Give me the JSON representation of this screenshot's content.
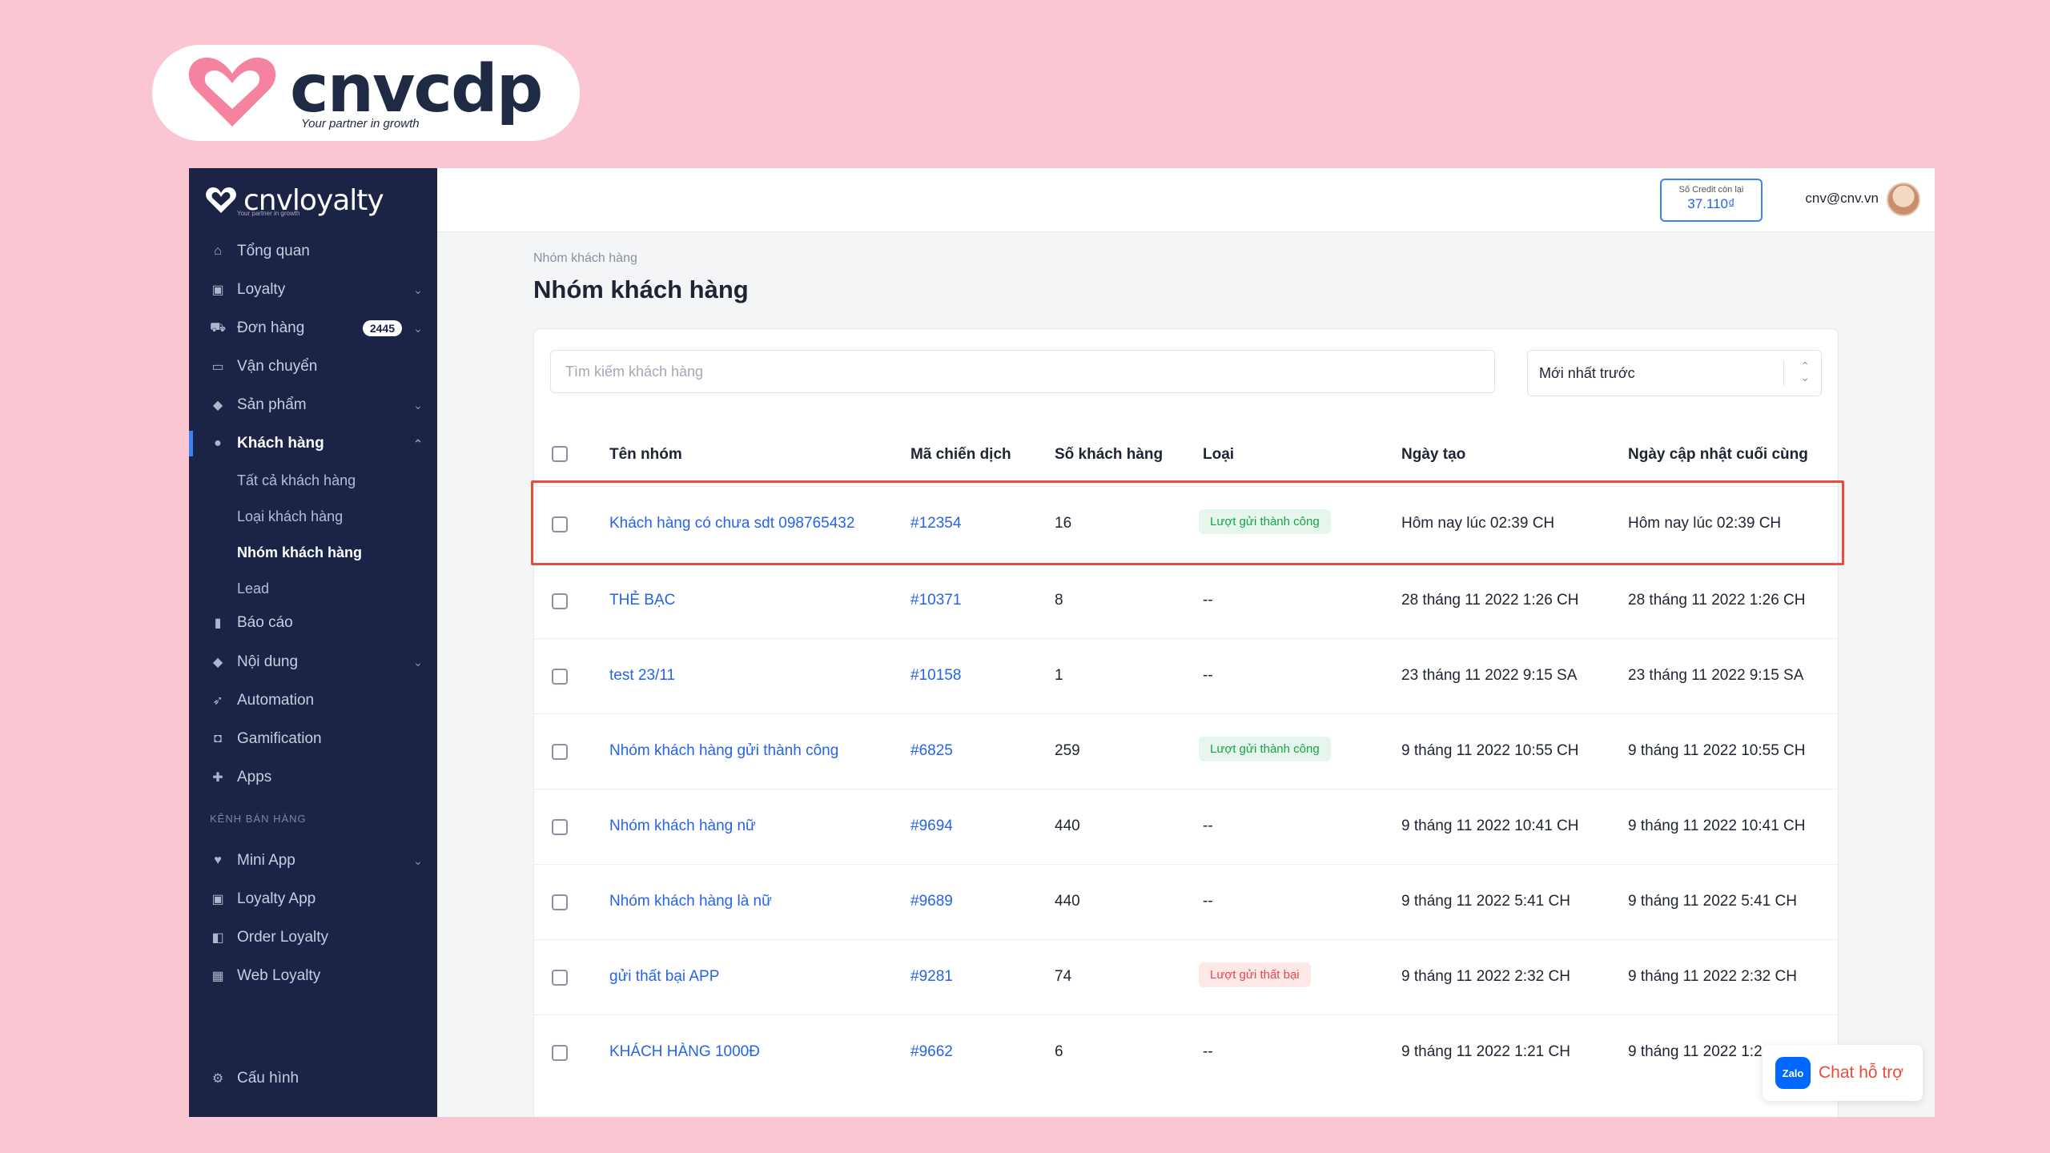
{
  "brand": {
    "name": "cnvcdp",
    "tagline": "Your partner in growth"
  },
  "sidebar": {
    "logo": "cnvloyalty",
    "logo_tag": "Your partner in growth",
    "items": [
      {
        "label": "Tổng quan",
        "icon": "home-icon"
      },
      {
        "label": "Loyalty",
        "icon": "gift-icon"
      },
      {
        "label": "Đơn hàng",
        "icon": "cart-icon",
        "badge": "2445"
      },
      {
        "label": "Vận chuyển",
        "icon": "truck-icon"
      },
      {
        "label": "Sản phẩm",
        "icon": "tag-icon"
      },
      {
        "label": "Khách hàng",
        "icon": "user-icon"
      },
      {
        "label": "Báo cáo",
        "icon": "bar-chart-icon"
      },
      {
        "label": "Nội dung",
        "icon": "content-icon"
      },
      {
        "label": "Automation",
        "icon": "rocket-icon"
      },
      {
        "label": "Gamification",
        "icon": "gamepad-icon"
      },
      {
        "label": "Apps",
        "icon": "puzzle-icon"
      }
    ],
    "subitems": [
      "Tất cả khách hàng",
      "Loại khách hàng",
      "Nhóm khách hàng",
      "Lead"
    ],
    "section_label": "KÊNH BÁN HÀNG",
    "channels": [
      {
        "label": "Mini App",
        "icon": "heart-icon"
      },
      {
        "label": "Loyalty App",
        "icon": "app-icon"
      },
      {
        "label": "Order Loyalty",
        "icon": "bag-icon"
      },
      {
        "label": "Web Loyalty",
        "icon": "web-icon"
      }
    ],
    "settings": "Cấu hình"
  },
  "topbar": {
    "credit_label": "Số Credit còn lại",
    "credit_value": "37.110₫",
    "user_email": "cnv@cnv.vn"
  },
  "main": {
    "breadcrumb": "Nhóm khách hàng",
    "title": "Nhóm khách hàng",
    "search_placeholder": "Tìm kiếm khách hàng",
    "sort_value": "Mới nhất trước",
    "columns": [
      "Tên nhóm",
      "Mã chiến dịch",
      "Số khách hàng",
      "Loại",
      "Ngày tạo",
      "Ngày cập nhật cuối cùng"
    ],
    "rows": [
      {
        "name": "Khách hàng có chưa sdt 098765432",
        "campaign": "#12354",
        "count": "16",
        "type": "Lượt gửi thành công",
        "type_status": "success",
        "created": "Hôm nay lúc 02:39 CH",
        "updated": "Hôm nay lúc 02:39 CH"
      },
      {
        "name": "THẺ BẠC",
        "campaign": "#10371",
        "count": "8",
        "type": "--",
        "type_status": "none",
        "created": "28 tháng 11 2022 1:26 CH",
        "updated": "28 tháng 11 2022 1:26 CH"
      },
      {
        "name": "test 23/11",
        "campaign": "#10158",
        "count": "1",
        "type": "--",
        "type_status": "none",
        "created": "23 tháng 11 2022 9:15 SA",
        "updated": "23 tháng 11 2022 9:15 SA"
      },
      {
        "name": "Nhóm khách hàng gửi thành công",
        "campaign": "#6825",
        "count": "259",
        "type": "Lượt gửi thành công",
        "type_status": "success",
        "created": "9 tháng 11 2022 10:55 CH",
        "updated": "9 tháng 11 2022 10:55 CH"
      },
      {
        "name": "Nhóm khách hàng nữ",
        "campaign": "#9694",
        "count": "440",
        "type": "--",
        "type_status": "none",
        "created": "9 tháng 11 2022 10:41 CH",
        "updated": "9 tháng 11 2022 10:41 CH"
      },
      {
        "name": "Nhóm khách hàng là nữ",
        "campaign": "#9689",
        "count": "440",
        "type": "--",
        "type_status": "none",
        "created": "9 tháng 11 2022 5:41 CH",
        "updated": "9 tháng 11 2022 5:41 CH"
      },
      {
        "name": "gửi thất bại APP",
        "campaign": "#9281",
        "count": "74",
        "type": "Lượt gửi thất bại",
        "type_status": "fail",
        "created": "9 tháng 11 2022 2:32 CH",
        "updated": "9 tháng 11 2022 2:32 CH"
      },
      {
        "name": "KHÁCH HÀNG 1000Đ",
        "campaign": "#9662",
        "count": "6",
        "type": "--",
        "type_status": "none",
        "created": "9 tháng 11 2022 1:21 CH",
        "updated": "9 tháng 11 2022 1:2"
      }
    ]
  },
  "chat": {
    "zalo": "Zalo",
    "label": "Chat hỗ trợ"
  },
  "colors": {
    "background": "#f9c6d2",
    "sidebar": "#1b2447",
    "link": "#2563eb",
    "highlight": "#e74c3c"
  }
}
